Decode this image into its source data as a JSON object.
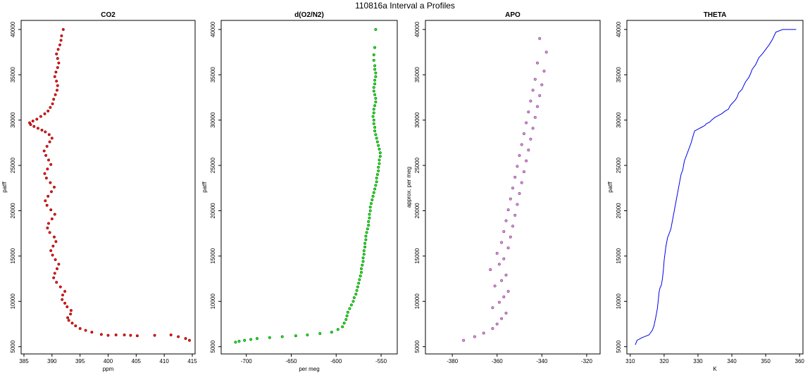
{
  "figure": {
    "title": "110816a   Interval a Profiles"
  },
  "chart_data": [
    {
      "type": "scatter",
      "title": "CO2",
      "xlabel": "ppm",
      "ylabel": "patff",
      "xlim": [
        384.5,
        415.5
      ],
      "ylim": [
        4200,
        41000
      ],
      "xticks": [
        385,
        390,
        395,
        400,
        405,
        410,
        415
      ],
      "yticks": [
        5000,
        10000,
        15000,
        20000,
        25000,
        30000,
        35000,
        40000
      ],
      "color": "#ff0000",
      "series": [
        {
          "x": [
            414.5,
            413.8,
            412.5,
            411.2,
            408.3,
            405.2,
            404.0,
            402.9,
            401.4,
            400.0,
            398.8,
            397.1,
            396.0,
            395.0,
            394.2,
            393.6,
            393.0,
            392.8,
            393.3,
            393.4,
            392.7,
            392.3,
            391.8,
            391.9,
            392.3,
            391.5,
            390.8,
            390.3,
            390.5,
            390.9,
            391.2,
            390.6,
            390.1,
            389.8,
            390.2,
            390.7,
            390.4,
            389.6,
            389.2,
            389.4,
            390.0,
            390.5,
            389.8,
            389.1,
            388.8,
            389.3,
            389.9,
            390.4,
            389.7,
            389.0,
            388.7,
            389.2,
            389.8,
            389.4,
            388.9,
            388.6,
            389.1,
            389.6,
            390.0,
            389.5,
            388.8,
            388.2,
            387.5,
            386.8,
            386.2,
            386.0,
            386.6,
            387.3,
            388.0,
            388.7,
            389.3,
            389.7,
            390.1,
            390.3,
            390.6,
            390.9,
            391.0,
            390.8,
            390.5,
            390.7,
            391.0,
            391.2,
            391.0,
            390.8,
            391.1,
            391.4,
            391.6,
            391.7,
            392.0
          ],
          "y": [
            5700,
            5900,
            6100,
            6300,
            6250,
            6200,
            6250,
            6300,
            6300,
            6250,
            6350,
            6600,
            6800,
            7000,
            7300,
            7600,
            7900,
            8200,
            8600,
            9000,
            9400,
            9800,
            10200,
            10700,
            11100,
            11600,
            12100,
            12600,
            13100,
            13600,
            14100,
            14600,
            15100,
            15600,
            16100,
            16600,
            17100,
            17600,
            18100,
            18600,
            19100,
            19600,
            20100,
            20600,
            21100,
            21600,
            22100,
            22600,
            23100,
            23600,
            24100,
            24600,
            25100,
            25600,
            26100,
            26600,
            27100,
            27600,
            28000,
            28400,
            28700,
            28900,
            29100,
            29300,
            29500,
            29700,
            29900,
            30100,
            30400,
            30700,
            31000,
            31400,
            31800,
            32300,
            32800,
            33300,
            33800,
            34300,
            34800,
            35300,
            35800,
            36300,
            36800,
            37300,
            37800,
            38300,
            38800,
            39300,
            40000
          ]
        }
      ]
    },
    {
      "type": "scatter",
      "title": "d(O2/N2)",
      "xlabel": "per meg",
      "ylabel": "patff",
      "xlim": [
        -728,
        -532
      ],
      "ylim": [
        4200,
        41000
      ],
      "xticks": [
        -700,
        -650,
        -600,
        -550
      ],
      "yticks": [
        5000,
        10000,
        15000,
        20000,
        25000,
        30000,
        35000,
        40000
      ],
      "color": "#00ee00",
      "series": [
        {
          "x": [
            -712,
            -708,
            -702,
            -695,
            -688,
            -674,
            -660,
            -645,
            -632,
            -618,
            -605,
            -598,
            -593,
            -591,
            -589,
            -588,
            -587,
            -585,
            -583,
            -581,
            -580,
            -578,
            -577,
            -576,
            -575,
            -574,
            -573,
            -572,
            -572,
            -571,
            -570,
            -570,
            -569,
            -569,
            -568,
            -568,
            -567,
            -567,
            -566,
            -565,
            -564,
            -564,
            -563,
            -563,
            -562,
            -562,
            -561,
            -560,
            -559,
            -558,
            -557,
            -556,
            -555,
            -555,
            -554,
            -553,
            -553,
            -552,
            -552,
            -551,
            -551,
            -552,
            -553,
            -554,
            -555,
            -556,
            -557,
            -557,
            -558,
            -558,
            -559,
            -558,
            -558,
            -557,
            -556,
            -556,
            -557,
            -558,
            -558,
            -557,
            -557,
            -556,
            -556,
            -557,
            -557,
            -558,
            -558,
            -557,
            -556
          ],
          "y": [
            5500,
            5600,
            5700,
            5800,
            5900,
            6000,
            6100,
            6200,
            6300,
            6450,
            6600,
            6900,
            7200,
            7600,
            8000,
            8400,
            8800,
            9200,
            9600,
            10000,
            10400,
            10800,
            11200,
            11600,
            12000,
            12400,
            12800,
            13200,
            13600,
            14000,
            14400,
            14800,
            15200,
            15600,
            16000,
            16400,
            16800,
            17200,
            17600,
            18000,
            18400,
            18800,
            19200,
            19600,
            20000,
            20400,
            20800,
            21200,
            21600,
            22000,
            22400,
            22800,
            23200,
            23600,
            24000,
            24400,
            24800,
            25200,
            25600,
            26000,
            26400,
            26800,
            27200,
            27600,
            28000,
            28400,
            28800,
            29200,
            29600,
            30000,
            30400,
            30800,
            31200,
            31600,
            32000,
            32400,
            32800,
            33200,
            33600,
            34000,
            34400,
            34800,
            35200,
            35600,
            36000,
            36600,
            37200,
            38000,
            40000
          ]
        }
      ]
    },
    {
      "type": "scatter",
      "title": "APO",
      "xlabel": "",
      "ylabel": "approx. per meg",
      "xlim": [
        -392,
        -314
      ],
      "ylim": [
        4200,
        41000
      ],
      "xticks": [
        -380,
        -360,
        -340,
        -320
      ],
      "yticks": [
        5000,
        10000,
        15000,
        20000,
        25000,
        30000,
        35000,
        40000
      ],
      "color": "#ee82ee",
      "series": [
        {
          "x": [
            -375,
            -370,
            -366,
            -362,
            -360,
            -358,
            -356,
            -362,
            -359,
            -357,
            -355,
            -361,
            -358,
            -356,
            -363,
            -359,
            -357,
            -360,
            -355,
            -358,
            -354,
            -357,
            -353,
            -356,
            -352,
            -355,
            -351,
            -354,
            -350,
            -353,
            -349,
            -352,
            -348,
            -351,
            -347,
            -350,
            -346,
            -349,
            -345,
            -348,
            -344,
            -347,
            -343,
            -346,
            -342,
            -345,
            -341,
            -344,
            -340,
            -343,
            -339,
            -342,
            -338,
            -341
          ],
          "y": [
            5700,
            6100,
            6500,
            7000,
            7500,
            8100,
            8700,
            9300,
            9900,
            10500,
            11100,
            11700,
            12300,
            12900,
            13500,
            14100,
            14700,
            15300,
            15900,
            16500,
            17100,
            17700,
            18300,
            18900,
            19500,
            20100,
            20700,
            21300,
            21900,
            22500,
            23100,
            23700,
            24300,
            24900,
            25500,
            26100,
            26700,
            27300,
            27900,
            28500,
            29100,
            29700,
            30300,
            30900,
            31500,
            32100,
            32700,
            33300,
            33900,
            34500,
            35400,
            36300,
            37500,
            39000
          ]
        }
      ]
    },
    {
      "type": "line",
      "title": "THETA",
      "xlabel": "K",
      "ylabel": "patff",
      "xlim": [
        309,
        361
      ],
      "ylim": [
        4200,
        41000
      ],
      "xticks": [
        310,
        320,
        330,
        340,
        350,
        360
      ],
      "yticks": [
        5000,
        10000,
        15000,
        20000,
        25000,
        30000,
        35000,
        40000
      ],
      "color": "#0000ee",
      "series": [
        {
          "x": [
            311.5,
            312,
            313.5,
            315.5,
            316.5,
            317,
            317.5,
            318,
            318.3,
            318.5,
            318.8,
            319.2,
            319.5,
            319.8,
            320,
            320.5,
            321,
            322,
            322.5,
            323,
            323.5,
            324,
            324.5,
            325,
            325.5,
            326,
            327,
            328,
            328.5,
            329,
            330,
            331,
            332,
            332.5,
            333.5,
            334,
            335,
            336,
            337,
            338,
            339,
            339.5,
            340,
            341,
            341.5,
            342,
            343,
            343.5,
            344,
            345,
            345.5,
            346,
            347,
            347.5,
            348,
            349,
            350,
            351,
            352,
            353,
            355,
            357,
            359
          ],
          "y": [
            5200,
            5700,
            6000,
            6300,
            6800,
            7300,
            8200,
            9200,
            10200,
            11000,
            11500,
            11800,
            12500,
            13500,
            14500,
            16000,
            17000,
            18000,
            19000,
            20000,
            21000,
            22000,
            23000,
            24000,
            24500,
            25500,
            26500,
            27500,
            28200,
            28800,
            29000,
            29200,
            29400,
            29600,
            29800,
            30000,
            30300,
            30500,
            30700,
            31000,
            31200,
            31600,
            31800,
            32200,
            32500,
            33000,
            33400,
            33800,
            34200,
            34700,
            35100,
            35600,
            36100,
            36500,
            36900,
            37300,
            37800,
            38300,
            38900,
            39700,
            40000,
            40000,
            40000
          ]
        }
      ]
    }
  ]
}
